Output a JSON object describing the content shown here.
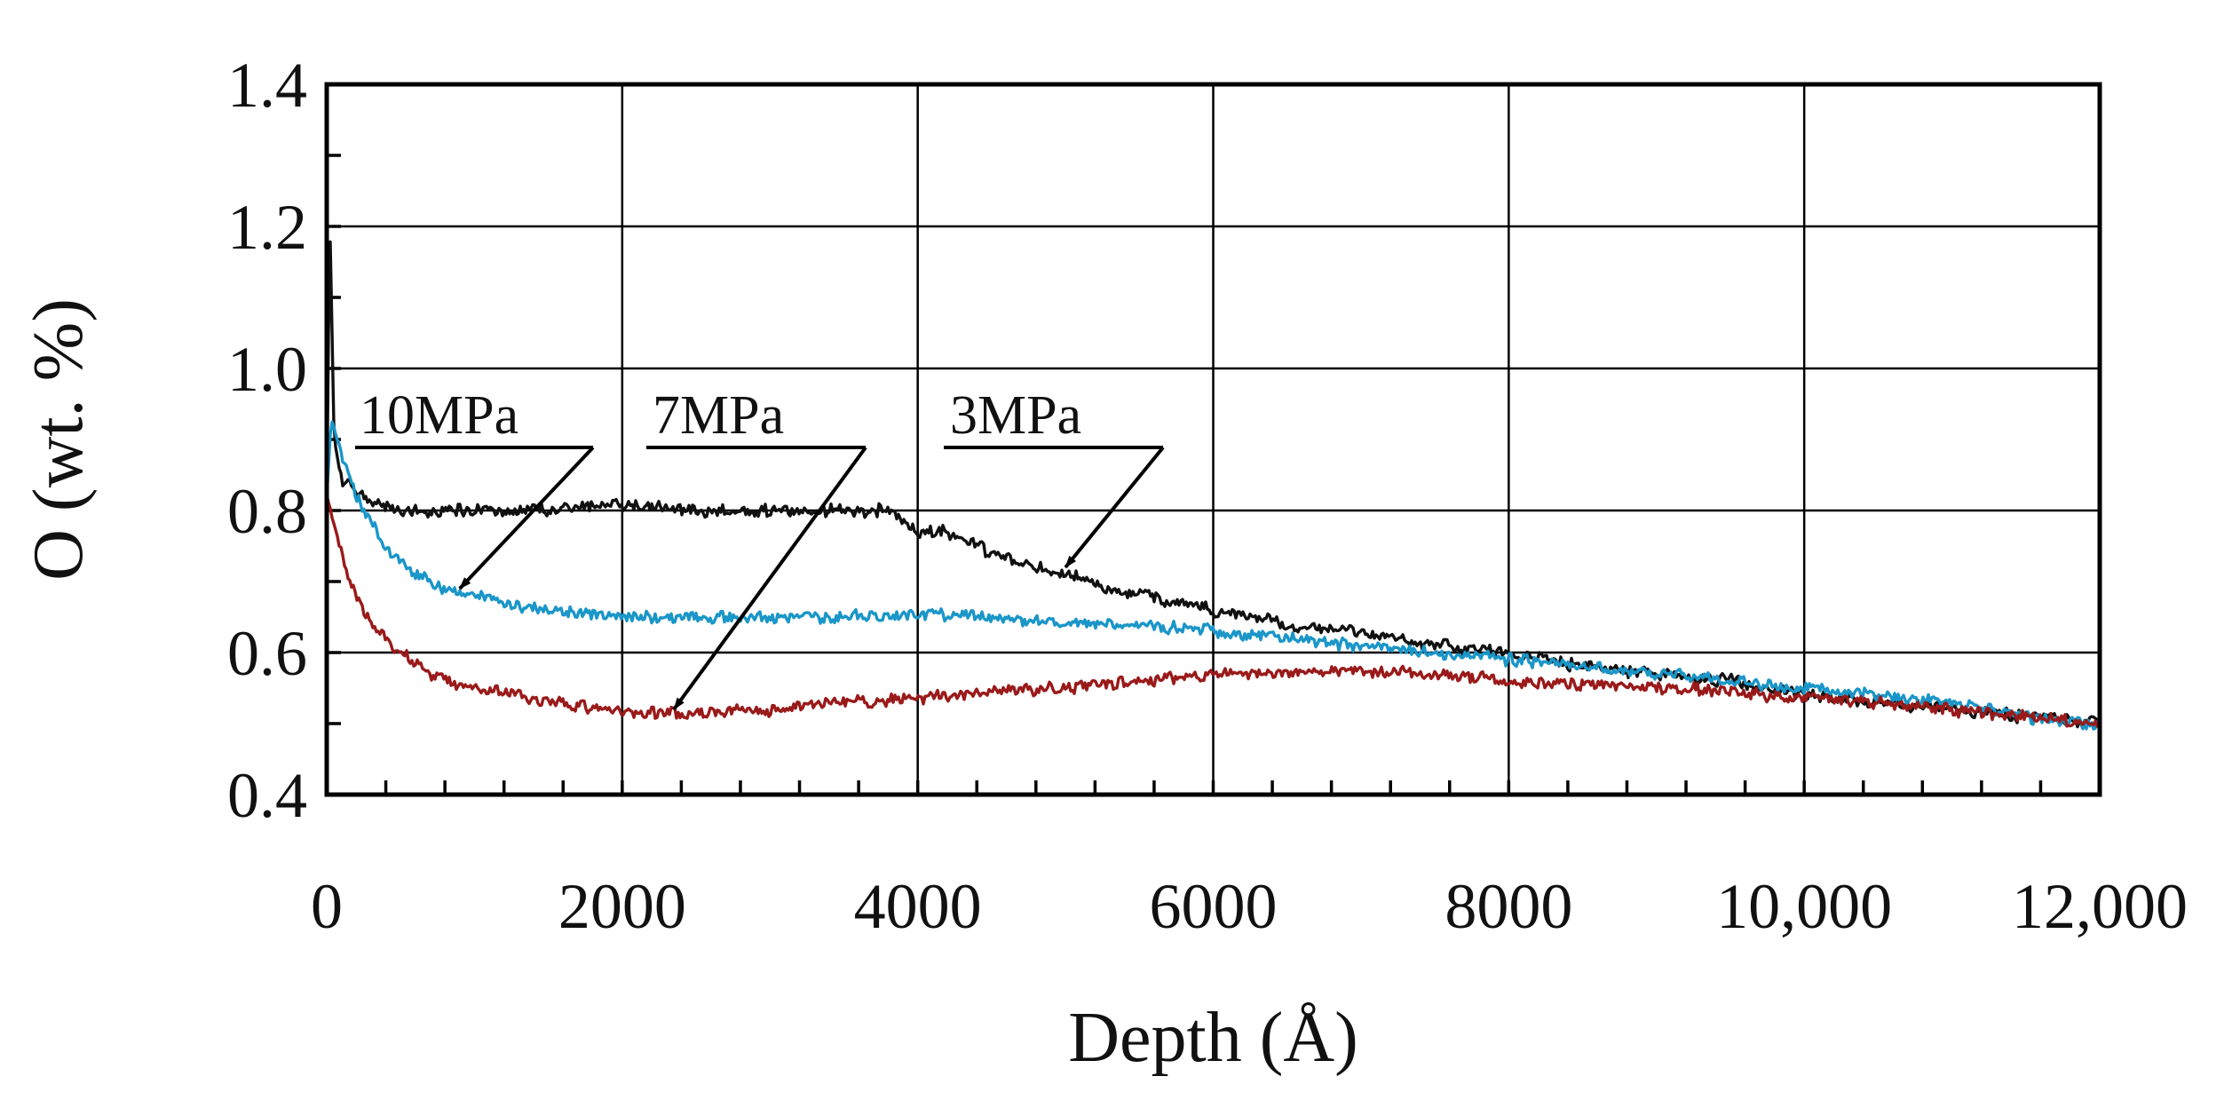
{
  "chart_data": {
    "type": "line",
    "title": "",
    "xlabel": "Depth (Å)",
    "ylabel": "O (wt. %)",
    "xlim": [
      0,
      12000
    ],
    "ylim": [
      0.4,
      1.4
    ],
    "x_ticks": [
      0,
      2000,
      4000,
      6000,
      8000,
      10000,
      12000
    ],
    "x_tick_labels": [
      "0",
      "2000",
      "4000",
      "6000",
      "8000",
      "10,000",
      "12,000"
    ],
    "y_ticks": [
      0.4,
      0.6,
      0.8,
      1.0,
      1.2,
      1.4
    ],
    "y_tick_labels": [
      "0.4",
      "0.6",
      "0.8",
      "1.0",
      "1.2",
      "1.4"
    ],
    "grid": true,
    "legend": "none",
    "series": [
      {
        "name": "3MPa",
        "color": "#111111",
        "x": [
          0,
          20,
          50,
          100,
          200,
          300,
          500,
          800,
          1000,
          1500,
          2000,
          2500,
          3000,
          3500,
          3800,
          4000,
          4200,
          4500,
          5000,
          5500,
          6000,
          6500,
          7000,
          7500,
          8000,
          8500,
          9000,
          9500,
          10000,
          10500,
          11000,
          11500,
          12000
        ],
        "y": [
          0.8,
          1.22,
          0.9,
          0.84,
          0.83,
          0.81,
          0.8,
          0.8,
          0.8,
          0.8,
          0.81,
          0.8,
          0.8,
          0.8,
          0.8,
          0.77,
          0.77,
          0.74,
          0.71,
          0.68,
          0.66,
          0.64,
          0.63,
          0.61,
          0.6,
          0.58,
          0.57,
          0.56,
          0.54,
          0.53,
          0.52,
          0.51,
          0.5
        ]
      },
      {
        "name": "10MPa",
        "color": "#1a96c8",
        "x": [
          0,
          30,
          100,
          200,
          400,
          600,
          800,
          1000,
          1200,
          1500,
          2000,
          2500,
          3000,
          3500,
          4000,
          4500,
          5000,
          5500,
          6000,
          6500,
          7000,
          7500,
          8000,
          8500,
          9000,
          9500,
          10000,
          10500,
          11000,
          11500,
          12000
        ],
        "y": [
          0.82,
          0.93,
          0.88,
          0.82,
          0.75,
          0.71,
          0.69,
          0.68,
          0.67,
          0.66,
          0.65,
          0.65,
          0.65,
          0.65,
          0.655,
          0.65,
          0.64,
          0.64,
          0.63,
          0.62,
          0.61,
          0.6,
          0.59,
          0.58,
          0.57,
          0.56,
          0.55,
          0.54,
          0.53,
          0.51,
          0.5
        ]
      },
      {
        "name": "7MPa",
        "color": "#9a1a1a",
        "x": [
          0,
          50,
          150,
          300,
          500,
          700,
          1000,
          1500,
          2000,
          2500,
          3000,
          3500,
          4000,
          4500,
          5000,
          5500,
          6000,
          6500,
          7000,
          7500,
          8000,
          8500,
          9000,
          9500,
          10000,
          10500,
          11000,
          11500,
          12000
        ],
        "y": [
          0.82,
          0.78,
          0.7,
          0.64,
          0.6,
          0.57,
          0.55,
          0.53,
          0.515,
          0.515,
          0.52,
          0.53,
          0.535,
          0.545,
          0.55,
          0.56,
          0.57,
          0.57,
          0.575,
          0.57,
          0.56,
          0.555,
          0.55,
          0.545,
          0.535,
          0.53,
          0.52,
          0.51,
          0.5
        ]
      }
    ],
    "annotations": [
      {
        "text": "10MPa",
        "points_to": {
          "x": 900,
          "y": 0.69
        }
      },
      {
        "text": "7MPa",
        "points_to": {
          "x": 2350,
          "y": 0.52
        }
      },
      {
        "text": "3MPa",
        "points_to": {
          "x": 5000,
          "y": 0.72
        }
      }
    ]
  }
}
